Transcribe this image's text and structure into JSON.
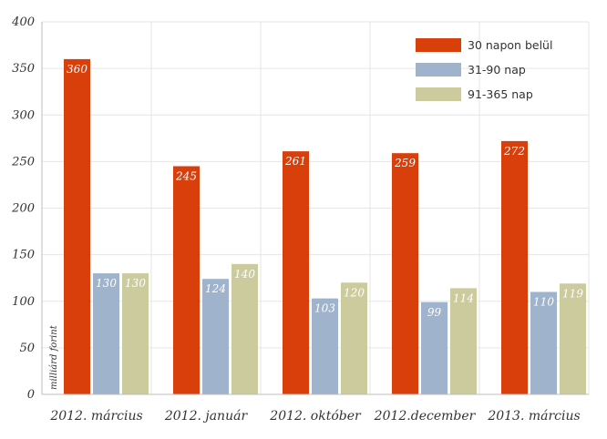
{
  "chart_data": {
    "type": "bar",
    "title": "",
    "xlabel": "",
    "ylabel": "milliárd forint",
    "ylim": [
      0,
      400
    ],
    "yticks": [
      "0",
      "50",
      "100",
      "150",
      "200",
      "250",
      "300",
      "350",
      "400"
    ],
    "grid": true,
    "legend_position": "top-right",
    "categories": [
      "2012. március",
      "2012. január",
      "2012. október",
      "2012.december",
      "2013. március"
    ],
    "series": [
      {
        "name": "30 napon belül",
        "color": "#d93f0b",
        "values": [
          360,
          245,
          261,
          259,
          272
        ]
      },
      {
        "name": "31-90 nap",
        "color": "#9fb3cd",
        "values": [
          130,
          124,
          103,
          99,
          110
        ]
      },
      {
        "name": "91-365 nap",
        "color": "#cccb9d",
        "values": [
          130,
          140,
          120,
          114,
          119
        ]
      }
    ]
  }
}
